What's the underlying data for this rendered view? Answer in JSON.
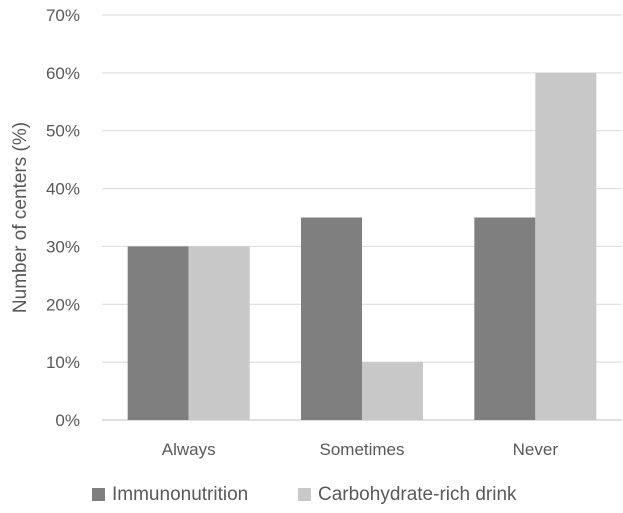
{
  "chart_data": {
    "type": "bar",
    "title": "",
    "xlabel": "",
    "ylabel": "Number of centers (%)",
    "categories": [
      "Always",
      "Sometimes",
      "Never"
    ],
    "series": [
      {
        "name": "Immunonutrition",
        "values": [
          30,
          35,
          35
        ],
        "color": "#7f7f7f"
      },
      {
        "name": "Carbohydrate-rich drink",
        "values": [
          30,
          10,
          60
        ],
        "color": "#c8c8c8"
      }
    ],
    "ylim": [
      0,
      70
    ],
    "yticks": [
      0,
      10,
      20,
      30,
      40,
      50,
      60,
      70
    ],
    "ytick_labels": [
      "0%",
      "10%",
      "20%",
      "30%",
      "40%",
      "50%",
      "60%",
      "70%"
    ],
    "grid": true,
    "legend_position": "bottom"
  }
}
